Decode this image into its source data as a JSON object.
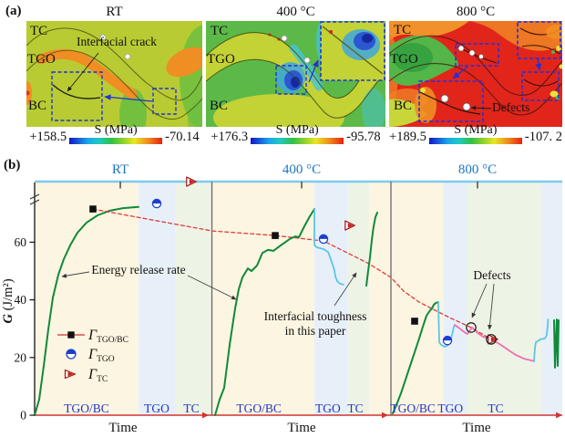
{
  "colors": {
    "band_cream": "#fcf5e1",
    "band_blue": "#e7f0f9",
    "band_green": "#edf3e5",
    "top_line": "#7ecbee",
    "axis_red": "#d23333",
    "divider": "#6a6a6a",
    "green_curve": "#0f8a3a",
    "cyan_curve": "#5ec4e8",
    "pink_curve": "#ef6fb4",
    "dashed_red": "#e03a3a",
    "marker_blue": "#1d3fd0",
    "marker_red": "#cf1b1b",
    "label_blue": "#2038c0",
    "temp_blue": "#1b75c0"
  },
  "panel_a": {
    "label": "(a)",
    "plots": [
      {
        "title": "RT",
        "layers": [
          "TC",
          "TGO",
          "BC"
        ],
        "annotation": "Interfacial crack",
        "scale": {
          "max": "+158.5",
          "label": "S (MPa)",
          "min": "-70.14"
        }
      },
      {
        "title": "400 °C",
        "layers": [
          "TC",
          "TGO",
          "BC"
        ],
        "scale": {
          "max": "+176.3",
          "label": "S (MPa)",
          "min": "-95.78"
        }
      },
      {
        "title": "800 °C",
        "layers": [
          "TC",
          "TGO",
          "BC"
        ],
        "annotation": "Defects",
        "scale": {
          "max": "+189.5",
          "label": "S (MPa)",
          "min": "-107. 2"
        }
      }
    ]
  },
  "panel_b": {
    "label": "(b)",
    "ylabel_g": "G",
    "ylabel_units": " (J/m²)",
    "xlabel": "Time",
    "legend": [
      {
        "symbol": "square-line",
        "main": "Γ",
        "sub": "TGO/BC"
      },
      {
        "symbol": "half-circle",
        "main": "Γ",
        "sub": "TGO"
      },
      {
        "symbol": "triangle",
        "main": "Γ",
        "sub": "TC"
      }
    ],
    "annotations": {
      "energy": "Energy release rate",
      "toughness_1": "Interfacial toughness",
      "toughness_2": "in this paper",
      "defects": "Defects"
    },
    "chart_data": {
      "type": "line",
      "ylim": [
        0,
        81
      ],
      "yticks": [
        0,
        20,
        40,
        60
      ],
      "top_axis": [
        {
          "label": "RT",
          "u": 0.1624
        },
        {
          "label": "400 °C",
          "u": 0.5061
        },
        {
          "label": "800 °C",
          "u": 0.8394
        }
      ],
      "dividers": [
        0.336,
        0.6753
      ],
      "axis_arrows": [
        0.3178,
        0.658,
        0.988
      ],
      "xlabel_positions": [
        0.1675,
        0.506,
        0.8376
      ],
      "bands": [
        {
          "span": [
            0,
            0.197
          ],
          "fill": "band_cream"
        },
        {
          "span": [
            0.197,
            0.266
          ],
          "fill": "band_blue"
        },
        {
          "span": [
            0.266,
            0.336
          ],
          "fill": "band_green"
        },
        {
          "span": [
            0.336,
            0.5302
          ],
          "fill": "band_cream"
        },
        {
          "span": [
            0.5302,
            0.5925
          ],
          "fill": "band_blue"
        },
        {
          "span": [
            0.5925,
            0.634
          ],
          "fill": "band_green"
        },
        {
          "span": [
            0.634,
            0.6753
          ],
          "fill": "band_cream"
        },
        {
          "span": [
            0.6753,
            0.7754
          ],
          "fill": "band_cream"
        },
        {
          "span": [
            0.7754,
            0.8187
          ],
          "fill": "band_blue"
        },
        {
          "span": [
            0.8187,
            0.962
          ],
          "fill": "band_green"
        },
        {
          "span": [
            0.962,
            1
          ],
          "fill": "band_blue"
        }
      ],
      "regions": [
        {
          "label": "TGO/BC",
          "u": 0.0985
        },
        {
          "label": "TGO",
          "u": 0.2314
        },
        {
          "label": "TC",
          "u": 0.297
        },
        {
          "label": "TGO/BC",
          "u": 0.425
        },
        {
          "label": "TGO",
          "u": 0.556
        },
        {
          "label": "TC",
          "u": 0.608
        },
        {
          "label": "TGO/BC",
          "u": 0.717
        },
        {
          "label": "TGO",
          "u": 0.788
        },
        {
          "label": "TC",
          "u": 0.874
        }
      ],
      "series": [
        {
          "name": "energy-release-rate-RT",
          "color": "green_curve",
          "width": 2,
          "points": [
            [
              0,
              0
            ],
            [
              0.0086,
              5.4
            ],
            [
              0.0173,
              17.1
            ],
            [
              0.0259,
              29.7
            ],
            [
              0.0345,
              40.8
            ],
            [
              0.0449,
              48.7
            ],
            [
              0.0553,
              54.1
            ],
            [
              0.0674,
              58.9
            ],
            [
              0.0812,
              63.3
            ],
            [
              0.0984,
              66.8
            ],
            [
              0.1192,
              69.3
            ],
            [
              0.1416,
              70.9
            ],
            [
              0.1675,
              71.8
            ],
            [
              0.1969,
              72.2
            ]
          ]
        },
        {
          "name": "interfacial-toughness-dashed",
          "color": "dashed_red",
          "width": 1.3,
          "dash": "4,3",
          "points": [
            [
              0.1105,
              71.5
            ],
            [
              0.3368,
              63.9
            ],
            [
              0.456,
              62.3
            ],
            [
              0.5475,
              60.4
            ],
            [
              0.5959,
              56
            ],
            [
              0.6339,
              52.5
            ],
            [
              0.6753,
              47.8
            ],
            [
              0.6995,
              43
            ],
            [
              0.7289,
              39.2
            ],
            [
              0.7859,
              33.9
            ],
            [
              0.8273,
              30.4
            ],
            [
              0.8653,
              26.3
            ]
          ]
        },
        {
          "name": "energy-release-rate-400",
          "color": "green_curve",
          "width": 2,
          "points": [
            [
              0.342,
              0
            ],
            [
              0.3506,
              5.4
            ],
            [
              0.3592,
              9.5
            ],
            [
              0.3696,
              24.4
            ],
            [
              0.38,
              37
            ],
            [
              0.3869,
              43.7
            ],
            [
              0.3938,
              47.8
            ],
            [
              0.4042,
              50.9
            ],
            [
              0.4111,
              50
            ],
            [
              0.4214,
              51.9
            ],
            [
              0.4318,
              56.3
            ],
            [
              0.4421,
              57.3
            ],
            [
              0.4525,
              57
            ],
            [
              0.4663,
              58.9
            ],
            [
              0.4836,
              61.1
            ],
            [
              0.4939,
              62
            ],
            [
              0.5009,
              61.7
            ],
            [
              0.5112,
              65.5
            ],
            [
              0.5216,
              69
            ],
            [
              0.5302,
              71.5
            ]
          ]
        },
        {
          "name": "g-tgo-400-cyan",
          "color": "cyan_curve",
          "width": 1.8,
          "points": [
            [
              0.5302,
              71.5
            ],
            [
              0.5302,
              58.9
            ],
            [
              0.5354,
              58.2
            ],
            [
              0.5475,
              57.6
            ],
            [
              0.5561,
              56.6
            ],
            [
              0.5613,
              54.1
            ],
            [
              0.5682,
              50.3
            ],
            [
              0.5699,
              48.1
            ],
            [
              0.5734,
              46.5
            ],
            [
              0.5785,
              45.6
            ],
            [
              0.5854,
              45.3
            ]
          ]
        },
        {
          "name": "g-tc-400-green",
          "color": "green_curve",
          "width": 2,
          "points": [
            [
              0.6287,
              44.9
            ],
            [
              0.6321,
              50
            ],
            [
              0.6356,
              54.7
            ],
            [
              0.639,
              60.8
            ],
            [
              0.6425,
              65.5
            ],
            [
              0.6459,
              68.7
            ],
            [
              0.6494,
              70.3
            ]
          ]
        },
        {
          "name": "energy-release-rate-800",
          "color": "green_curve",
          "width": 2,
          "points": [
            [
              0.6788,
              0.6
            ],
            [
              0.6857,
              3.5
            ],
            [
              0.6943,
              7.6
            ],
            [
              0.703,
              12.3
            ],
            [
              0.7116,
              17.1
            ],
            [
              0.7202,
              21.8
            ],
            [
              0.7289,
              26.6
            ],
            [
              0.7358,
              30.7
            ],
            [
              0.7427,
              34.5
            ],
            [
              0.7496,
              36.4
            ],
            [
              0.753,
              37
            ],
            [
              0.7565,
              38.3
            ],
            [
              0.7599,
              38.9
            ],
            [
              0.7651,
              39.2
            ]
          ]
        },
        {
          "name": "g-tgo-800-cyan",
          "color": "cyan_curve",
          "width": 1.8,
          "points": [
            [
              0.7651,
              39.2
            ],
            [
              0.7668,
              25.3
            ],
            [
              0.7703,
              24.4
            ],
            [
              0.7772,
              23.7
            ],
            [
              0.7841,
              24.4
            ],
            [
              0.7893,
              26.6
            ],
            [
              0.7927,
              29.1
            ],
            [
              0.7945,
              30.7
            ],
            [
              0.7962,
              31.3
            ]
          ]
        },
        {
          "name": "g-tc-800-pink",
          "color": "pink_curve",
          "width": 1.8,
          "points": [
            [
              0.7962,
              31.3
            ],
            [
              0.8031,
              30.4
            ],
            [
              0.81,
              29.4
            ],
            [
              0.8169,
              28.5
            ],
            [
              0.8204,
              28.2
            ],
            [
              0.829,
              30.4
            ],
            [
              0.8394,
              28.5
            ],
            [
              0.8497,
              27.2
            ],
            [
              0.8653,
              26.3
            ],
            [
              0.8808,
              24.7
            ],
            [
              0.8964,
              22.8
            ],
            [
              0.9119,
              20.9
            ],
            [
              0.9275,
              19.6
            ],
            [
              0.9413,
              19
            ],
            [
              0.9465,
              18.7
            ]
          ]
        },
        {
          "name": "g-800-cyan-right",
          "color": "cyan_curve",
          "width": 1.8,
          "points": [
            [
              0.9465,
              18.7
            ],
            [
              0.9482,
              23.4
            ],
            [
              0.95,
              25.3
            ],
            [
              0.9586,
              26.3
            ],
            [
              0.9672,
              26.6
            ],
            [
              0.9707,
              27.8
            ],
            [
              0.9724,
              31.3
            ],
            [
              0.9733,
              33.2
            ]
          ]
        },
        {
          "name": "g-800-green-right",
          "color": "green_curve",
          "width": 2,
          "points": [
            [
              0.9845,
              32.9
            ],
            [
              0.9862,
              16.5
            ],
            [
              0.9896,
              33.2
            ],
            [
              0.9914,
              17.1
            ],
            [
              0.9931,
              32.9
            ]
          ]
        }
      ],
      "markers": [
        {
          "type": "square",
          "u": 0.1105,
          "G": 71.5
        },
        {
          "type": "square",
          "u": 0.456,
          "G": 62.3
        },
        {
          "type": "square",
          "u": 0.7202,
          "G": 32.6
        },
        {
          "type": "half_circle",
          "u": 0.2314,
          "G": 73.4
        },
        {
          "type": "half_circle",
          "u": 0.5475,
          "G": 61.1
        },
        {
          "type": "half_circle",
          "u": 0.7824,
          "G": 25.9
        },
        {
          "type": "triangle",
          "u": 0.2953,
          "G": 81
        },
        {
          "type": "triangle",
          "u": 0.5959,
          "G": 65.8
        },
        {
          "type": "triangle",
          "u": 0.867,
          "G": 26.3
        },
        {
          "type": "open_circle",
          "u": 0.8273,
          "G": 30.4
        },
        {
          "type": "open_circle",
          "u": 0.8653,
          "G": 26.3
        }
      ]
    }
  }
}
